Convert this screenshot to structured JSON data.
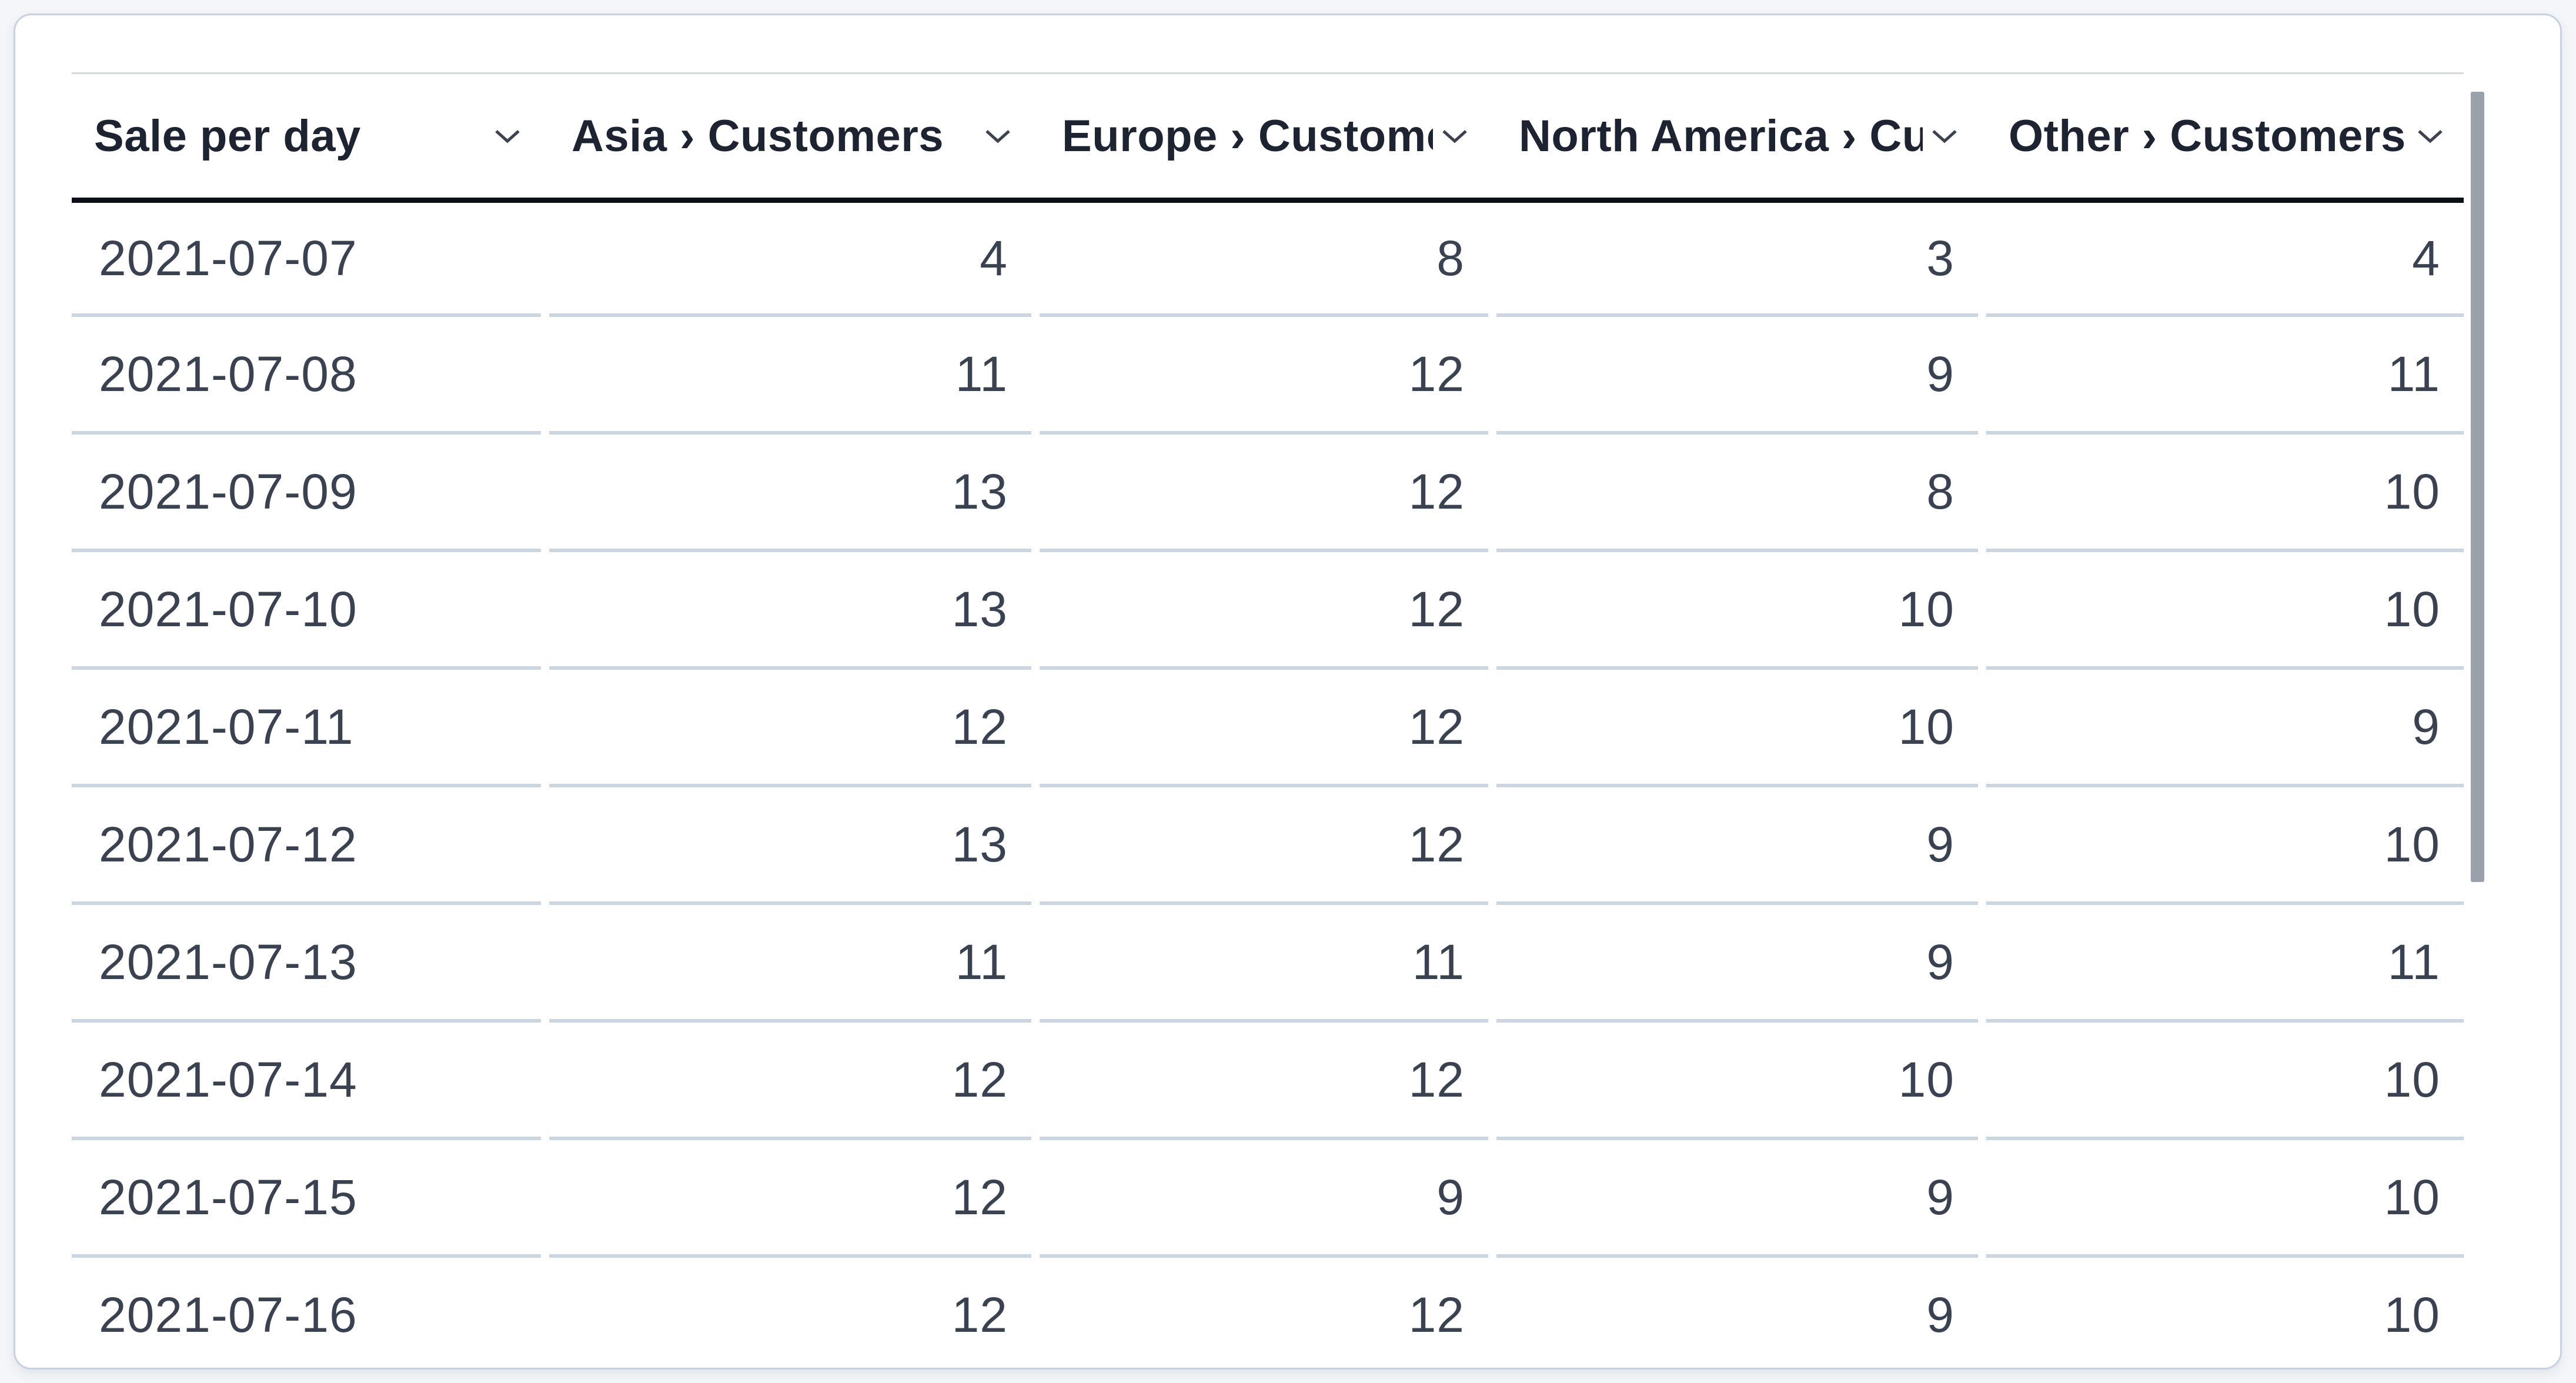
{
  "table": {
    "columns": [
      {
        "label": "Sale per day",
        "align": "left"
      },
      {
        "label": "Asia › Customers",
        "align": "right"
      },
      {
        "label": "Europe › Customers",
        "align": "right"
      },
      {
        "label": "North America › Customers",
        "align": "right"
      },
      {
        "label": "Other › Customers",
        "align": "right"
      }
    ],
    "rows": [
      [
        "2021-07-07",
        "4",
        "8",
        "3",
        "4"
      ],
      [
        "2021-07-08",
        "11",
        "12",
        "9",
        "11"
      ],
      [
        "2021-07-09",
        "13",
        "12",
        "8",
        "10"
      ],
      [
        "2021-07-10",
        "13",
        "12",
        "10",
        "10"
      ],
      [
        "2021-07-11",
        "12",
        "12",
        "10",
        "9"
      ],
      [
        "2021-07-12",
        "13",
        "12",
        "9",
        "10"
      ],
      [
        "2021-07-13",
        "11",
        "11",
        "9",
        "11"
      ],
      [
        "2021-07-14",
        "12",
        "12",
        "10",
        "10"
      ],
      [
        "2021-07-15",
        "12",
        "9",
        "9",
        "10"
      ],
      [
        "2021-07-16",
        "12",
        "12",
        "9",
        "10"
      ]
    ]
  },
  "icons": {
    "sort_chevron": "chevron-down-icon"
  },
  "colors": {
    "card_border": "#c7d1e0",
    "header_underline": "#0c0f15",
    "row_divider": "#ccd5e2",
    "header_text": "#1d2330",
    "body_text": "#3a4150",
    "scrollbar_thumb": "#9aa1ab",
    "chevron_stroke": "#3c424e",
    "page_background": "#f4f6f9"
  }
}
